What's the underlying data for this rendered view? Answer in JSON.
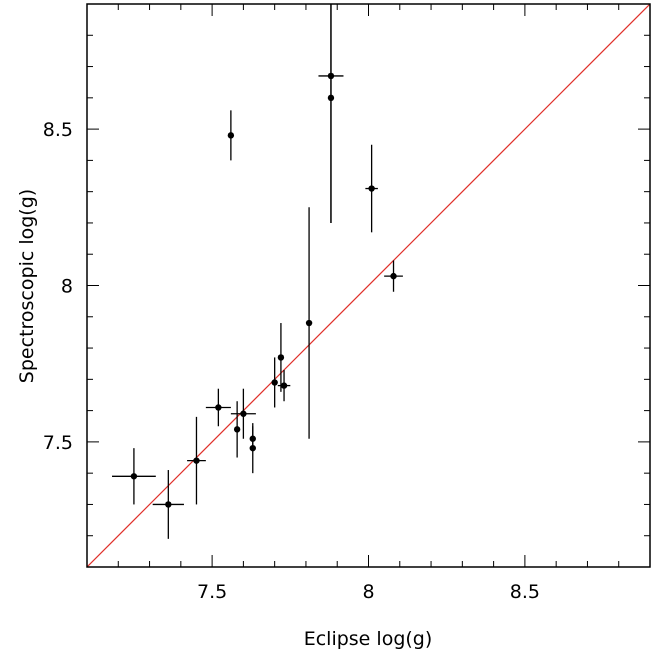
{
  "chart_data": {
    "type": "scatter",
    "xlabel": "Eclipse log(g)",
    "ylabel": "Spectroscopic log(g)",
    "xlim": [
      7.1,
      8.9
    ],
    "ylim": [
      7.1,
      8.9
    ],
    "x_ticks": [
      "7.5",
      "8",
      "8.5"
    ],
    "y_ticks": [
      "7.5",
      "8",
      "8.5"
    ],
    "grid": false,
    "reference_line": {
      "type": "y=x",
      "color": "#e0302a"
    },
    "marker_color": "#000000",
    "points": [
      {
        "x": 7.25,
        "y": 7.39,
        "xerr": 0.07,
        "yerr": 0.09
      },
      {
        "x": 7.36,
        "y": 7.3,
        "xerr": 0.05,
        "yerr": 0.11
      },
      {
        "x": 7.45,
        "y": 7.44,
        "xerr": 0.03,
        "yerr": 0.14
      },
      {
        "x": 7.52,
        "y": 7.61,
        "xerr": 0.04,
        "yerr": 0.06
      },
      {
        "x": 7.56,
        "y": 8.48,
        "xerr": 0.0,
        "yerr": 0.08
      },
      {
        "x": 7.58,
        "y": 7.54,
        "xerr": 0.0,
        "yerr": 0.09
      },
      {
        "x": 7.6,
        "y": 7.59,
        "xerr": 0.04,
        "yerr": 0.08
      },
      {
        "x": 7.63,
        "y": 7.51,
        "xerr": 0.0,
        "yerr": 0.04
      },
      {
        "x": 7.63,
        "y": 7.48,
        "xerr": 0.0,
        "yerr": 0.08
      },
      {
        "x": 7.7,
        "y": 7.69,
        "xerr": 0.0,
        "yerr": 0.08
      },
      {
        "x": 7.72,
        "y": 7.77,
        "xerr": 0.0,
        "yerr": 0.11
      },
      {
        "x": 7.73,
        "y": 7.68,
        "xerr": 0.02,
        "yerr": 0.05
      },
      {
        "x": 7.81,
        "y": 7.88,
        "xerr": 0.0,
        "yerr": 0.37
      },
      {
        "x": 7.88,
        "y": 8.67,
        "xerr": 0.04,
        "yerr": 0.47
      },
      {
        "x": 7.88,
        "y": 8.6,
        "xerr": 0.0,
        "yerr": 0.4
      },
      {
        "x": 8.01,
        "y": 8.31,
        "xerr": 0.02,
        "yerr": 0.14
      },
      {
        "x": 8.08,
        "y": 8.03,
        "xerr": 0.03,
        "yerr": 0.05
      }
    ]
  }
}
